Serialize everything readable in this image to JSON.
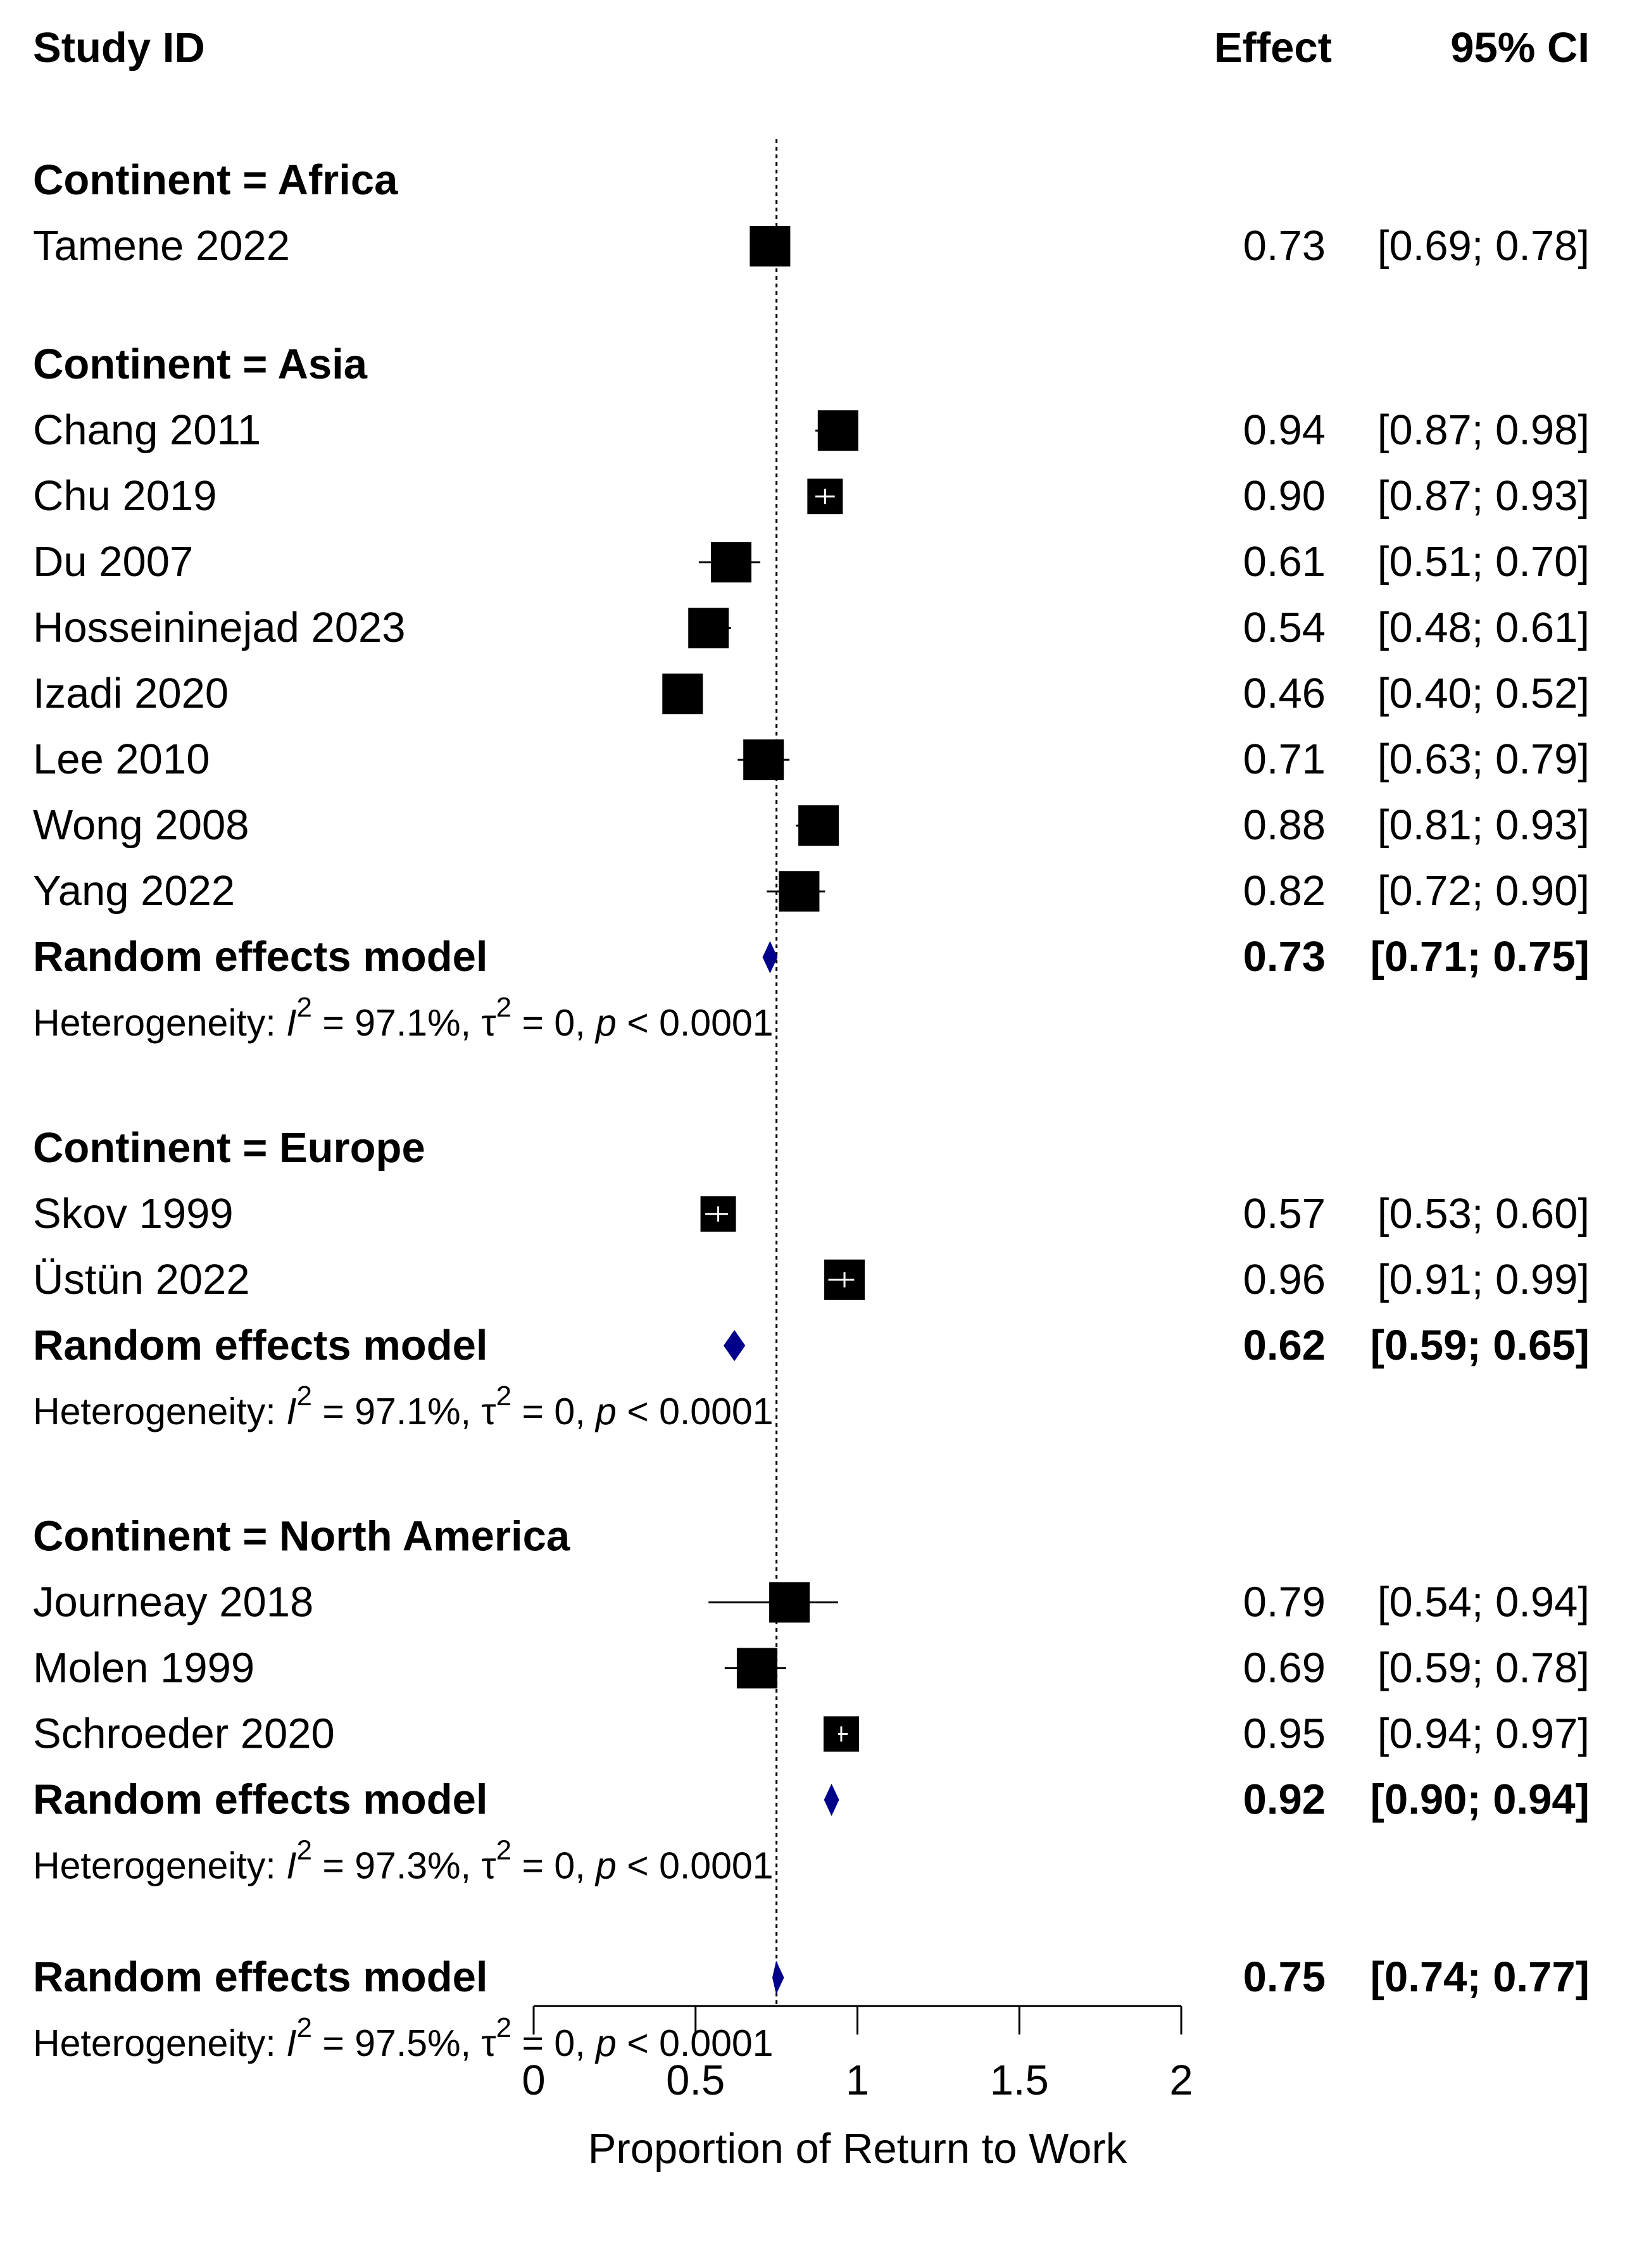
{
  "header": {
    "study": "Study ID",
    "effect": "Effect",
    "ci": "95% CI"
  },
  "chart_data": {
    "type": "forest",
    "xlabel": "Proportion of Return to Work",
    "xlim": [
      0,
      2
    ],
    "xticks": [
      "0",
      "0.5",
      "1",
      "1.5",
      "2"
    ],
    "reference_line": 0.75,
    "groups": [
      {
        "label": "Continent = Africa",
        "studies": [
          {
            "name": "Tamene 2022",
            "effect": 0.73,
            "lower": 0.69,
            "upper": 0.78,
            "effect_text": "0.73",
            "ci_text": "[0.69; 0.78]"
          }
        ]
      },
      {
        "label": "Continent = Asia",
        "studies": [
          {
            "name": "Chang 2011",
            "effect": 0.94,
            "lower": 0.87,
            "upper": 0.98,
            "effect_text": "0.94",
            "ci_text": "[0.87; 0.98]"
          },
          {
            "name": "Chu 2019",
            "effect": 0.9,
            "lower": 0.87,
            "upper": 0.93,
            "effect_text": "0.90",
            "ci_text": "[0.87; 0.93]"
          },
          {
            "name": "Du 2007",
            "effect": 0.61,
            "lower": 0.51,
            "upper": 0.7,
            "effect_text": "0.61",
            "ci_text": "[0.51; 0.70]"
          },
          {
            "name": "Hosseininejad 2023",
            "effect": 0.54,
            "lower": 0.48,
            "upper": 0.61,
            "effect_text": "0.54",
            "ci_text": "[0.48; 0.61]"
          },
          {
            "name": "Izadi 2020",
            "effect": 0.46,
            "lower": 0.4,
            "upper": 0.52,
            "effect_text": "0.46",
            "ci_text": "[0.40; 0.52]"
          },
          {
            "name": "Lee 2010",
            "effect": 0.71,
            "lower": 0.63,
            "upper": 0.79,
            "effect_text": "0.71",
            "ci_text": "[0.63; 0.79]"
          },
          {
            "name": "Wong 2008",
            "effect": 0.88,
            "lower": 0.81,
            "upper": 0.93,
            "effect_text": "0.88",
            "ci_text": "[0.81; 0.93]"
          },
          {
            "name": "Yang 2022",
            "effect": 0.82,
            "lower": 0.72,
            "upper": 0.9,
            "effect_text": "0.82",
            "ci_text": "[0.72; 0.90]"
          }
        ],
        "pooled": {
          "label": "Random effects model",
          "effect": 0.73,
          "lower": 0.71,
          "upper": 0.75,
          "effect_text": "0.73",
          "ci_text": "[0.71; 0.75]"
        },
        "heterogeneity": {
          "prefix": "Heterogeneity: ",
          "i2": "97.1%",
          "tau2": "0",
          "p": "< 0.0001"
        }
      },
      {
        "label": "Continent = Europe",
        "studies": [
          {
            "name": "Skov 1999",
            "effect": 0.57,
            "lower": 0.53,
            "upper": 0.6,
            "effect_text": "0.57",
            "ci_text": "[0.53; 0.60]"
          },
          {
            "name": "Üstün 2022",
            "effect": 0.96,
            "lower": 0.91,
            "upper": 0.99,
            "effect_text": "0.96",
            "ci_text": "[0.91; 0.99]"
          }
        ],
        "pooled": {
          "label": "Random effects model",
          "effect": 0.62,
          "lower": 0.59,
          "upper": 0.65,
          "effect_text": "0.62",
          "ci_text": "[0.59; 0.65]"
        },
        "heterogeneity": {
          "prefix": "Heterogeneity: ",
          "i2": "97.1%",
          "tau2": "0",
          "p": "< 0.0001"
        }
      },
      {
        "label": "Continent = North America",
        "studies": [
          {
            "name": "Journeay 2018",
            "effect": 0.79,
            "lower": 0.54,
            "upper": 0.94,
            "effect_text": "0.79",
            "ci_text": "[0.54; 0.94]"
          },
          {
            "name": "Molen 1999",
            "effect": 0.69,
            "lower": 0.59,
            "upper": 0.78,
            "effect_text": "0.69",
            "ci_text": "[0.59; 0.78]"
          },
          {
            "name": "Schroeder 2020",
            "effect": 0.95,
            "lower": 0.94,
            "upper": 0.97,
            "effect_text": "0.95",
            "ci_text": "[0.94; 0.97]"
          }
        ],
        "pooled": {
          "label": "Random effects model",
          "effect": 0.92,
          "lower": 0.9,
          "upper": 0.94,
          "effect_text": "0.92",
          "ci_text": "[0.90; 0.94]"
        },
        "heterogeneity": {
          "prefix": "Heterogeneity: ",
          "i2": "97.3%",
          "tau2": "0",
          "p": "< 0.0001"
        }
      }
    ],
    "overall": {
      "label": "Random effects model",
      "effect": 0.75,
      "lower": 0.74,
      "upper": 0.77,
      "effect_text": "0.75",
      "ci_text": "[0.74; 0.77]",
      "heterogeneity": {
        "prefix": "Heterogeneity: ",
        "i2": "97.5%",
        "tau2": "0",
        "p": "< 0.0001"
      }
    },
    "colors": {
      "study_box": "#000000",
      "pooled_diamond": "#00008b",
      "line": "#000000"
    }
  }
}
